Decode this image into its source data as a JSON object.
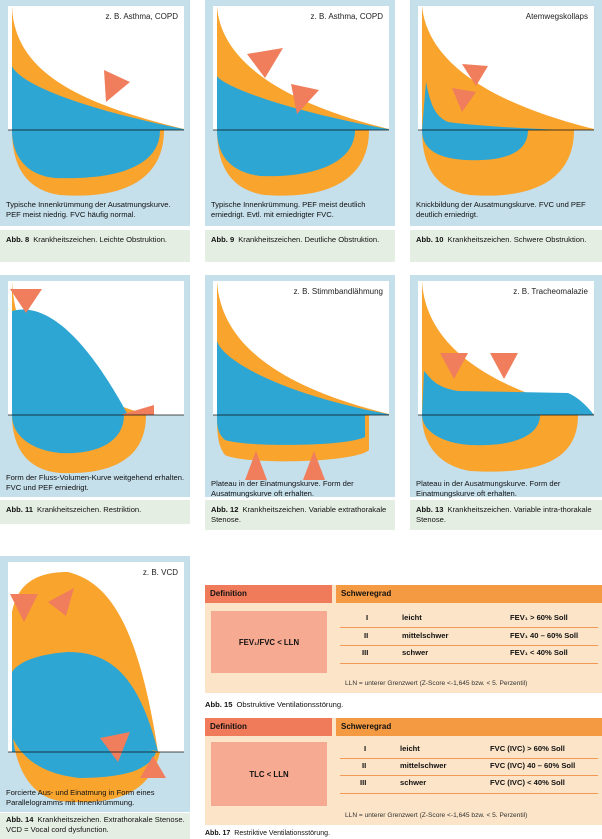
{
  "colors": {
    "blue": "#2ea6d4",
    "orange": "#f8a42d",
    "red_arrow": "#f07d5c",
    "panel_bg": "#c5dfeb",
    "caption_bg": "#e5eee3"
  },
  "figures": [
    {
      "tag": "z. B. Asthma, COPD",
      "desc": "Typische Innenkrümmung der Ausatmungskurve. PEF meist niedrig. FVC häufig normal.",
      "abb": "Abb. 8",
      "caption": "Krankheitszeichen. Leichte Obstruktion."
    },
    {
      "tag": "z. B. Asthma, COPD",
      "desc": "Typische Innenkrümmung. PEF meist deutlich erniedrigt. Evtl. mit erniedrigter FVC.",
      "abb": "Abb. 9",
      "caption": "Krankheitszeichen. Deutliche Obstruktion."
    },
    {
      "tag": "Atemwegskollaps",
      "desc": "Knickbildung der Ausatmungskurve. FVC und PEF deutlich erniedrigt.",
      "abb": "Abb. 10",
      "caption": "Krankheitszeichen. Schwere Obstruktion."
    },
    {
      "tag": "",
      "desc": "Form der Fluss-Volumen-Kurve weitgehend erhalten. FVC und PEF erniedrigt.",
      "abb": "Abb. 11",
      "caption": "Krankheitszeichen. Restriktion."
    },
    {
      "tag": "z. B. Stimmbandlähmung",
      "desc": "Plateau in der Einatmungskurve. Form der Ausatmungskurve oft erhalten.",
      "abb": "Abb. 12",
      "caption": "Krankheitszeichen. Variable extrathorakale Stenose."
    },
    {
      "tag": "z. B. Tracheomalazie",
      "desc": "Plateau in der Ausatmungskurve. Form der Einatmungskurve oft erhalten.",
      "abb": "Abb. 13",
      "caption": "Krankheitszeichen. Variable intra-thorakale Stenose."
    },
    {
      "tag": "z. B. VCD",
      "desc": "Forcierte Aus- und Einatmung in Form eines Parallelogramms mit Innenkrümmung.",
      "abb": "Abb. 14",
      "caption": "Krankheitszeichen. Extrathorakale Stenose. VCD = Vocal cord dysfunction."
    }
  ],
  "table15": {
    "head_def": "Definition",
    "head_sev": "Schweregrad",
    "definition": "FEV₁/FVC < LLN",
    "rows": [
      {
        "num": "I",
        "grade": "leicht",
        "value": "FEV₁ > 60% Soll"
      },
      {
        "num": "II",
        "grade": "mittelschwer",
        "value": "FEV₁ 40 – 60% Soll"
      },
      {
        "num": "III",
        "grade": "schwer",
        "value": "FEV₁ < 40% Soll"
      }
    ],
    "note": "LLN = unterer Grenzwert (Z-Score <-1,645 bzw. < 5. Perzentil)",
    "abb": "Abb. 15",
    "caption": "Obstruktive Ventilationsstörung."
  },
  "table17": {
    "head_def": "Definition",
    "head_sev": "Schweregrad",
    "definition": "TLC < LLN",
    "rows": [
      {
        "num": "I",
        "grade": "leicht",
        "value": "FVC (IVC) > 60% Soll"
      },
      {
        "num": "II",
        "grade": "mittelschwer",
        "value": "FVC (IVC) 40 – 60% Soll"
      },
      {
        "num": "III",
        "grade": "schwer",
        "value": "FVC (IVC) < 40% Soll"
      }
    ],
    "note": "LLN = unterer Grenzwert (Z-Score <-1,645 bzw. < 5. Perzentil)",
    "abb": "Abb. 17",
    "caption": "Restriktive Ventilationsstörung."
  }
}
